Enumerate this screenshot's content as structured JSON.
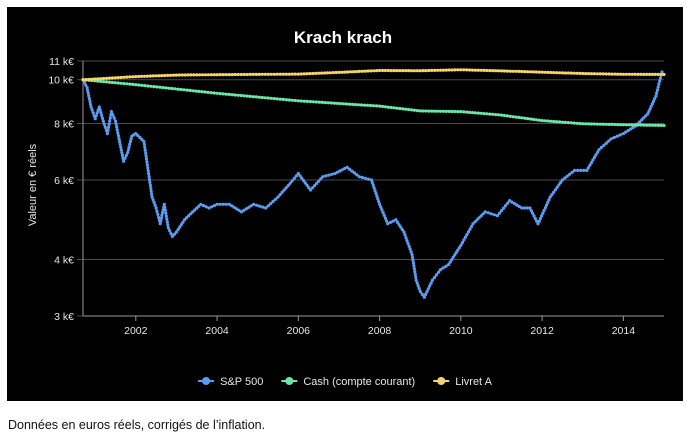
{
  "chart_data": {
    "type": "line",
    "title": "Krach krach",
    "xlabel": "",
    "ylabel": "Valeur en € réels",
    "y_scale": "log",
    "xlim": [
      2000.7,
      2015.0
    ],
    "ylim": [
      3000,
      11000
    ],
    "x_ticks": [
      {
        "value": 2002,
        "label": "2002"
      },
      {
        "value": 2004,
        "label": "2004"
      },
      {
        "value": 2006,
        "label": "2006"
      },
      {
        "value": 2008,
        "label": "2008"
      },
      {
        "value": 2010,
        "label": "2010"
      },
      {
        "value": 2012,
        "label": "2012"
      },
      {
        "value": 2014,
        "label": "2014"
      }
    ],
    "y_ticks": [
      {
        "value": 3000,
        "label": "3 k€"
      },
      {
        "value": 4000,
        "label": "4 k€"
      },
      {
        "value": 6000,
        "label": "6 k€"
      },
      {
        "value": 8000,
        "label": "8 k€"
      },
      {
        "value": 10000,
        "label": "10 k€"
      },
      {
        "value": 11000,
        "label": "11 k€"
      }
    ],
    "legend_position": "bottom",
    "series": [
      {
        "name": "S&P 500",
        "color": "#5b9cf0",
        "x": [
          2000.7,
          2000.8,
          2000.9,
          2001.0,
          2001.1,
          2001.2,
          2001.3,
          2001.4,
          2001.5,
          2001.6,
          2001.7,
          2001.8,
          2001.9,
          2002.0,
          2002.2,
          2002.4,
          2002.5,
          2002.6,
          2002.7,
          2002.8,
          2002.9,
          2003.0,
          2003.2,
          2003.4,
          2003.6,
          2003.8,
          2004.0,
          2004.3,
          2004.6,
          2004.9,
          2005.2,
          2005.5,
          2005.8,
          2006.0,
          2006.3,
          2006.6,
          2006.9,
          2007.2,
          2007.5,
          2007.8,
          2008.0,
          2008.2,
          2008.4,
          2008.6,
          2008.8,
          2008.9,
          2009.0,
          2009.1,
          2009.3,
          2009.5,
          2009.7,
          2010.0,
          2010.3,
          2010.6,
          2010.9,
          2011.2,
          2011.5,
          2011.7,
          2011.9,
          2012.2,
          2012.5,
          2012.8,
          2013.1,
          2013.4,
          2013.7,
          2014.0,
          2014.3,
          2014.6,
          2014.8,
          2014.95
        ],
        "values": [
          10000,
          9600,
          8700,
          8200,
          8700,
          8100,
          7600,
          8500,
          8100,
          7300,
          6600,
          6900,
          7500,
          7600,
          7300,
          5500,
          5200,
          4800,
          5300,
          4700,
          4500,
          4600,
          4900,
          5100,
          5300,
          5200,
          5300,
          5300,
          5100,
          5300,
          5200,
          5500,
          5900,
          6200,
          5700,
          6100,
          6200,
          6400,
          6100,
          6000,
          5300,
          4800,
          4900,
          4600,
          4100,
          3600,
          3400,
          3300,
          3600,
          3800,
          3900,
          4300,
          4800,
          5100,
          5000,
          5400,
          5200,
          5200,
          4800,
          5500,
          6000,
          6300,
          6300,
          7000,
          7400,
          7600,
          7900,
          8400,
          9200,
          10400
        ]
      },
      {
        "name": "Cash (compte courant)",
        "color": "#6ce6a6",
        "x": [
          2000.7,
          2002.0,
          2004.0,
          2006.0,
          2008.0,
          2009.0,
          2010.0,
          2011.0,
          2012.0,
          2013.0,
          2014.0,
          2015.0
        ],
        "values": [
          10000,
          9750,
          9330,
          8980,
          8740,
          8530,
          8500,
          8350,
          8120,
          7990,
          7950,
          7920
        ]
      },
      {
        "name": "Livret A",
        "color": "#f7d46a",
        "x": [
          2000.7,
          2002.0,
          2003.0,
          2004.0,
          2006.0,
          2007.0,
          2008.0,
          2009.0,
          2010.0,
          2011.0,
          2012.0,
          2013.0,
          2014.0,
          2015.0
        ],
        "values": [
          10000,
          10160,
          10240,
          10260,
          10290,
          10380,
          10480,
          10470,
          10520,
          10460,
          10390,
          10320,
          10280,
          10270
        ]
      }
    ]
  },
  "caption": "Données en euros réels, corrigés de l’inflation."
}
